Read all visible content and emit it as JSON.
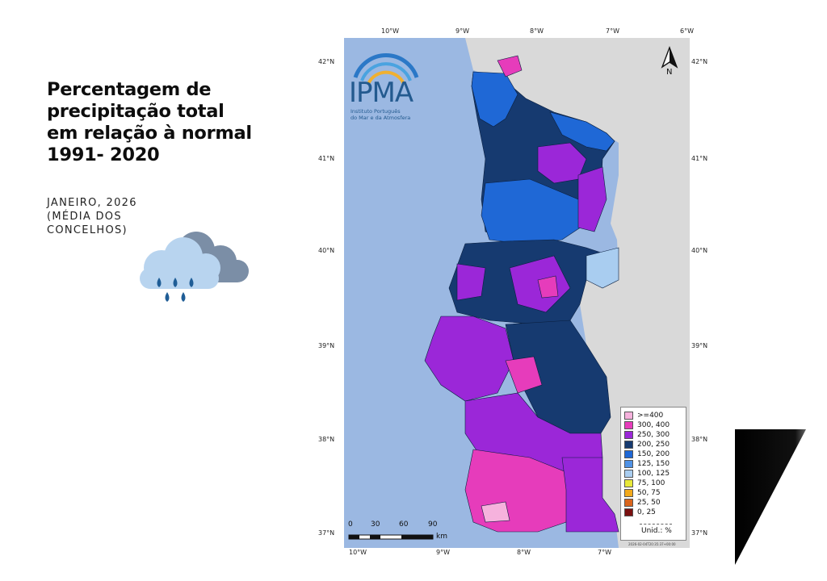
{
  "title": {
    "line1": "Percentagem de",
    "line2": "precipitação total",
    "line3": "em relação à normal",
    "line4": "1991- 2020"
  },
  "subtitle": {
    "line1": "JANEIRO, 2026",
    "line2": "(MÉDIA DOS",
    "line3": "CONCELHOS)"
  },
  "icons": {
    "weather": "rain-cloud-icon",
    "north": "north-arrow-icon",
    "logo": "ipma-logo"
  },
  "map": {
    "logo_name": "IPMA",
    "logo_subtitle_1": "Instituto Português",
    "logo_subtitle_2": "do Mar e da Atmosfera",
    "north_label": "N",
    "lon_ticks": [
      "10°W",
      "9°W",
      "8°W",
      "7°W",
      "6°W"
    ],
    "lat_ticks": [
      "42°N",
      "41°N",
      "40°N",
      "39°N",
      "38°N",
      "37°N"
    ],
    "scale_ticks": [
      "0",
      "30",
      "60",
      "90"
    ],
    "scale_unit": "km",
    "timestamp": "2026-02-04T20:35:37+00:00",
    "colors": {
      "ocean": "#9bb8e2",
      "spain": "#d9d9d9",
      "ge400": "#f6b2dd",
      "r300_400": "#e63cbb",
      "r250_300": "#9b27d8",
      "r200_250": "#163a70",
      "r150_200": "#1f68d6",
      "r125_150": "#4f92e6"
    }
  },
  "legend": {
    "items": [
      {
        "label": ">=400",
        "color": "#f6b2dd"
      },
      {
        "label": "300, 400",
        "color": "#e63cbb"
      },
      {
        "label": "250, 300",
        "color": "#9b27d8"
      },
      {
        "label": "200, 250",
        "color": "#163a70"
      },
      {
        "label": "150, 200",
        "color": "#1f68d6"
      },
      {
        "label": "125, 150",
        "color": "#4f92e6"
      },
      {
        "label": "100, 125",
        "color": "#a9cdf0"
      },
      {
        "label": "75, 100",
        "color": "#e8e83a"
      },
      {
        "label": "50, 75",
        "color": "#f2a91c"
      },
      {
        "label": "25, 50",
        "color": "#d9651d"
      },
      {
        "label": "0, 25",
        "color": "#7a1010"
      }
    ],
    "unit": "Unid.: %"
  }
}
